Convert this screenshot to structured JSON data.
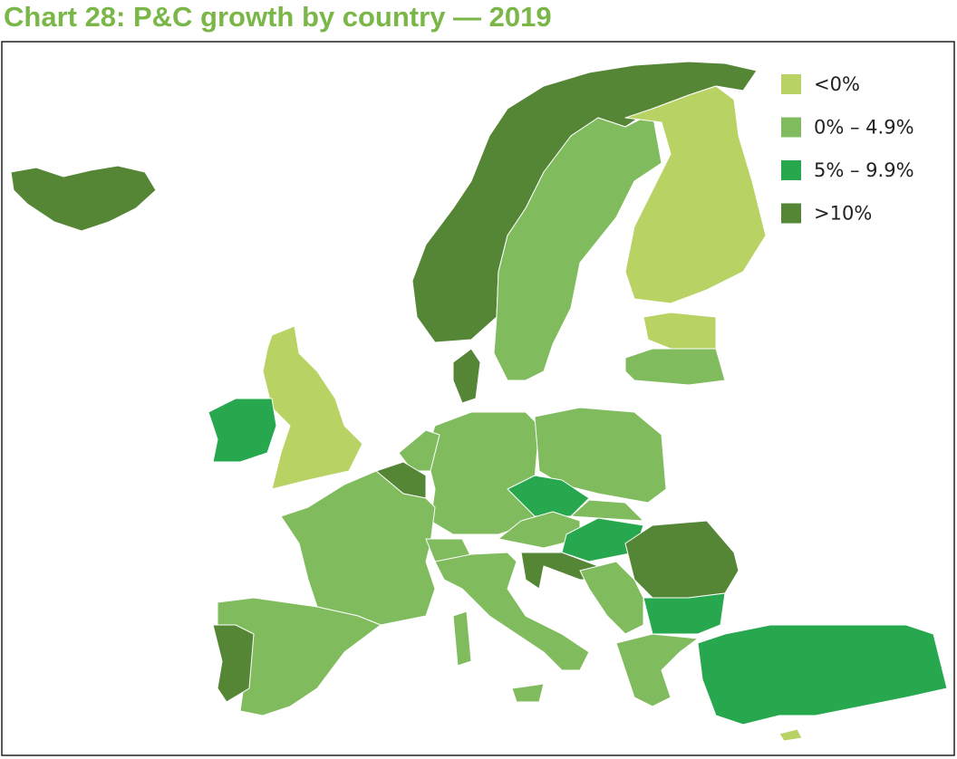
{
  "title": "Chart 28: P&C growth by country — 2019",
  "legend": {
    "items": [
      {
        "label": "<0%",
        "color": "#b9d264"
      },
      {
        "label": "0% – 4.9%",
        "color": "#80bc5e"
      },
      {
        "label": "5% – 9.9%",
        "color": "#27a84e"
      },
      {
        "label": ">10%",
        "color": "#558636"
      }
    ]
  }
}
